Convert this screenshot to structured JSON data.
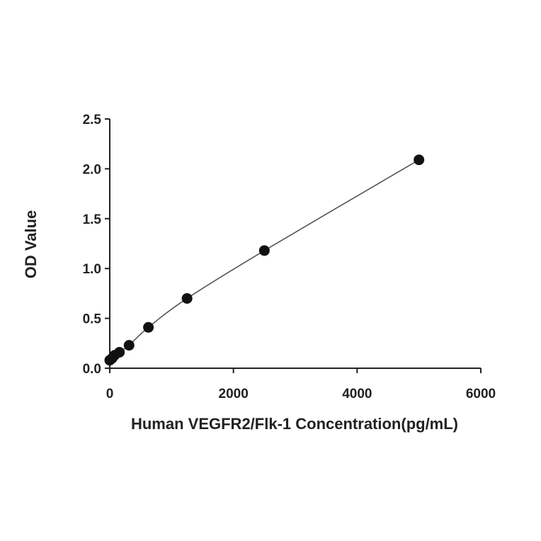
{
  "chart_data": {
    "type": "scatter",
    "title": "",
    "xlabel": "Human VEGFR2/Flk-1 Concentration(pg/mL)",
    "ylabel": "OD Value",
    "xlim": [
      0,
      6000
    ],
    "ylim": [
      0,
      2.5
    ],
    "x_ticks": [
      "0",
      "2000",
      "4000",
      "6000"
    ],
    "y_ticks": [
      "0.0",
      "0.5",
      "1.0",
      "1.5",
      "2.0",
      "2.5"
    ],
    "grid": false,
    "legend": "none",
    "fit_line": true,
    "colors": {
      "marker": "#111111",
      "line": "#555555",
      "axis": "#222222"
    },
    "series": [
      {
        "x": [
          0,
          39,
          78,
          156,
          312,
          625,
          1250,
          2500,
          5000
        ],
        "y": [
          0.08,
          0.1,
          0.13,
          0.16,
          0.23,
          0.41,
          0.7,
          1.18,
          2.09
        ]
      }
    ]
  }
}
